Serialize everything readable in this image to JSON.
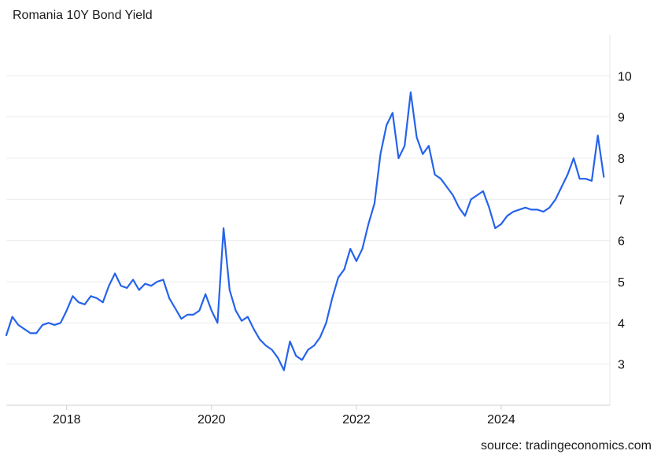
{
  "chart_data": {
    "type": "line",
    "title": "Romania 10Y Bond Yield",
    "source": "source: tradingeconomics.com",
    "xlabel": "",
    "ylabel": "",
    "x_tick_labels": [
      "2018",
      "2020",
      "2022",
      "2024"
    ],
    "y_tick_labels": [
      "3",
      "4",
      "5",
      "6",
      "7",
      "8",
      "9",
      "10"
    ],
    "xlim": [
      "2017-03",
      "2025-07"
    ],
    "ylim": [
      2.0,
      11.0
    ],
    "grid": "horizontal",
    "line_color": "#2563eb",
    "series": [
      {
        "x": [
          "2017-03",
          "2017-04",
          "2017-05",
          "2017-06",
          "2017-07",
          "2017-08",
          "2017-09",
          "2017-10",
          "2017-11",
          "2017-12",
          "2018-01",
          "2018-02",
          "2018-03",
          "2018-04",
          "2018-05",
          "2018-06",
          "2018-07",
          "2018-08",
          "2018-09",
          "2018-10",
          "2018-11",
          "2018-12",
          "2019-01",
          "2019-02",
          "2019-03",
          "2019-04",
          "2019-05",
          "2019-06",
          "2019-07",
          "2019-08",
          "2019-09",
          "2019-10",
          "2019-11",
          "2019-12",
          "2020-01",
          "2020-02",
          "2020-03",
          "2020-04",
          "2020-05",
          "2020-06",
          "2020-07",
          "2020-08",
          "2020-09",
          "2020-10",
          "2020-11",
          "2020-12",
          "2021-01",
          "2021-02",
          "2021-03",
          "2021-04",
          "2021-05",
          "2021-06",
          "2021-07",
          "2021-08",
          "2021-09",
          "2021-10",
          "2021-11",
          "2021-12",
          "2022-01",
          "2022-02",
          "2022-03",
          "2022-04",
          "2022-05",
          "2022-06",
          "2022-07",
          "2022-08",
          "2022-09",
          "2022-10",
          "2022-11",
          "2022-12",
          "2023-01",
          "2023-02",
          "2023-03",
          "2023-04",
          "2023-05",
          "2023-06",
          "2023-07",
          "2023-08",
          "2023-09",
          "2023-10",
          "2023-11",
          "2023-12",
          "2024-01",
          "2024-02",
          "2024-03",
          "2024-04",
          "2024-05",
          "2024-06",
          "2024-07",
          "2024-08",
          "2024-09",
          "2024-10",
          "2024-11",
          "2024-12",
          "2025-01",
          "2025-02",
          "2025-03",
          "2025-04",
          "2025-05",
          "2025-06"
        ],
        "values": [
          3.7,
          4.15,
          3.95,
          3.85,
          3.75,
          3.75,
          3.95,
          4.0,
          3.95,
          4.0,
          4.3,
          4.65,
          4.5,
          4.45,
          4.65,
          4.6,
          4.5,
          4.9,
          5.2,
          4.9,
          4.85,
          5.05,
          4.8,
          4.95,
          4.9,
          5.0,
          5.05,
          4.6,
          4.35,
          4.1,
          4.2,
          4.2,
          4.3,
          4.7,
          4.3,
          4.0,
          6.3,
          4.8,
          4.3,
          4.05,
          4.15,
          3.85,
          3.6,
          3.45,
          3.35,
          3.15,
          2.85,
          3.55,
          3.2,
          3.1,
          3.35,
          3.45,
          3.65,
          4.0,
          4.6,
          5.1,
          5.3,
          5.8,
          5.5,
          5.8,
          6.4,
          6.9,
          8.1,
          8.8,
          9.1,
          8.0,
          8.3,
          9.6,
          8.5,
          8.1,
          8.3,
          7.6,
          7.5,
          7.3,
          7.1,
          6.8,
          6.6,
          7.0,
          7.1,
          7.2,
          6.8,
          6.3,
          6.4,
          6.6,
          6.7,
          6.75,
          6.8,
          6.75,
          6.75,
          6.7,
          6.8,
          7.0,
          7.3,
          7.6,
          8.0,
          7.5,
          7.5,
          7.45,
          8.55,
          7.55
        ]
      }
    ]
  }
}
